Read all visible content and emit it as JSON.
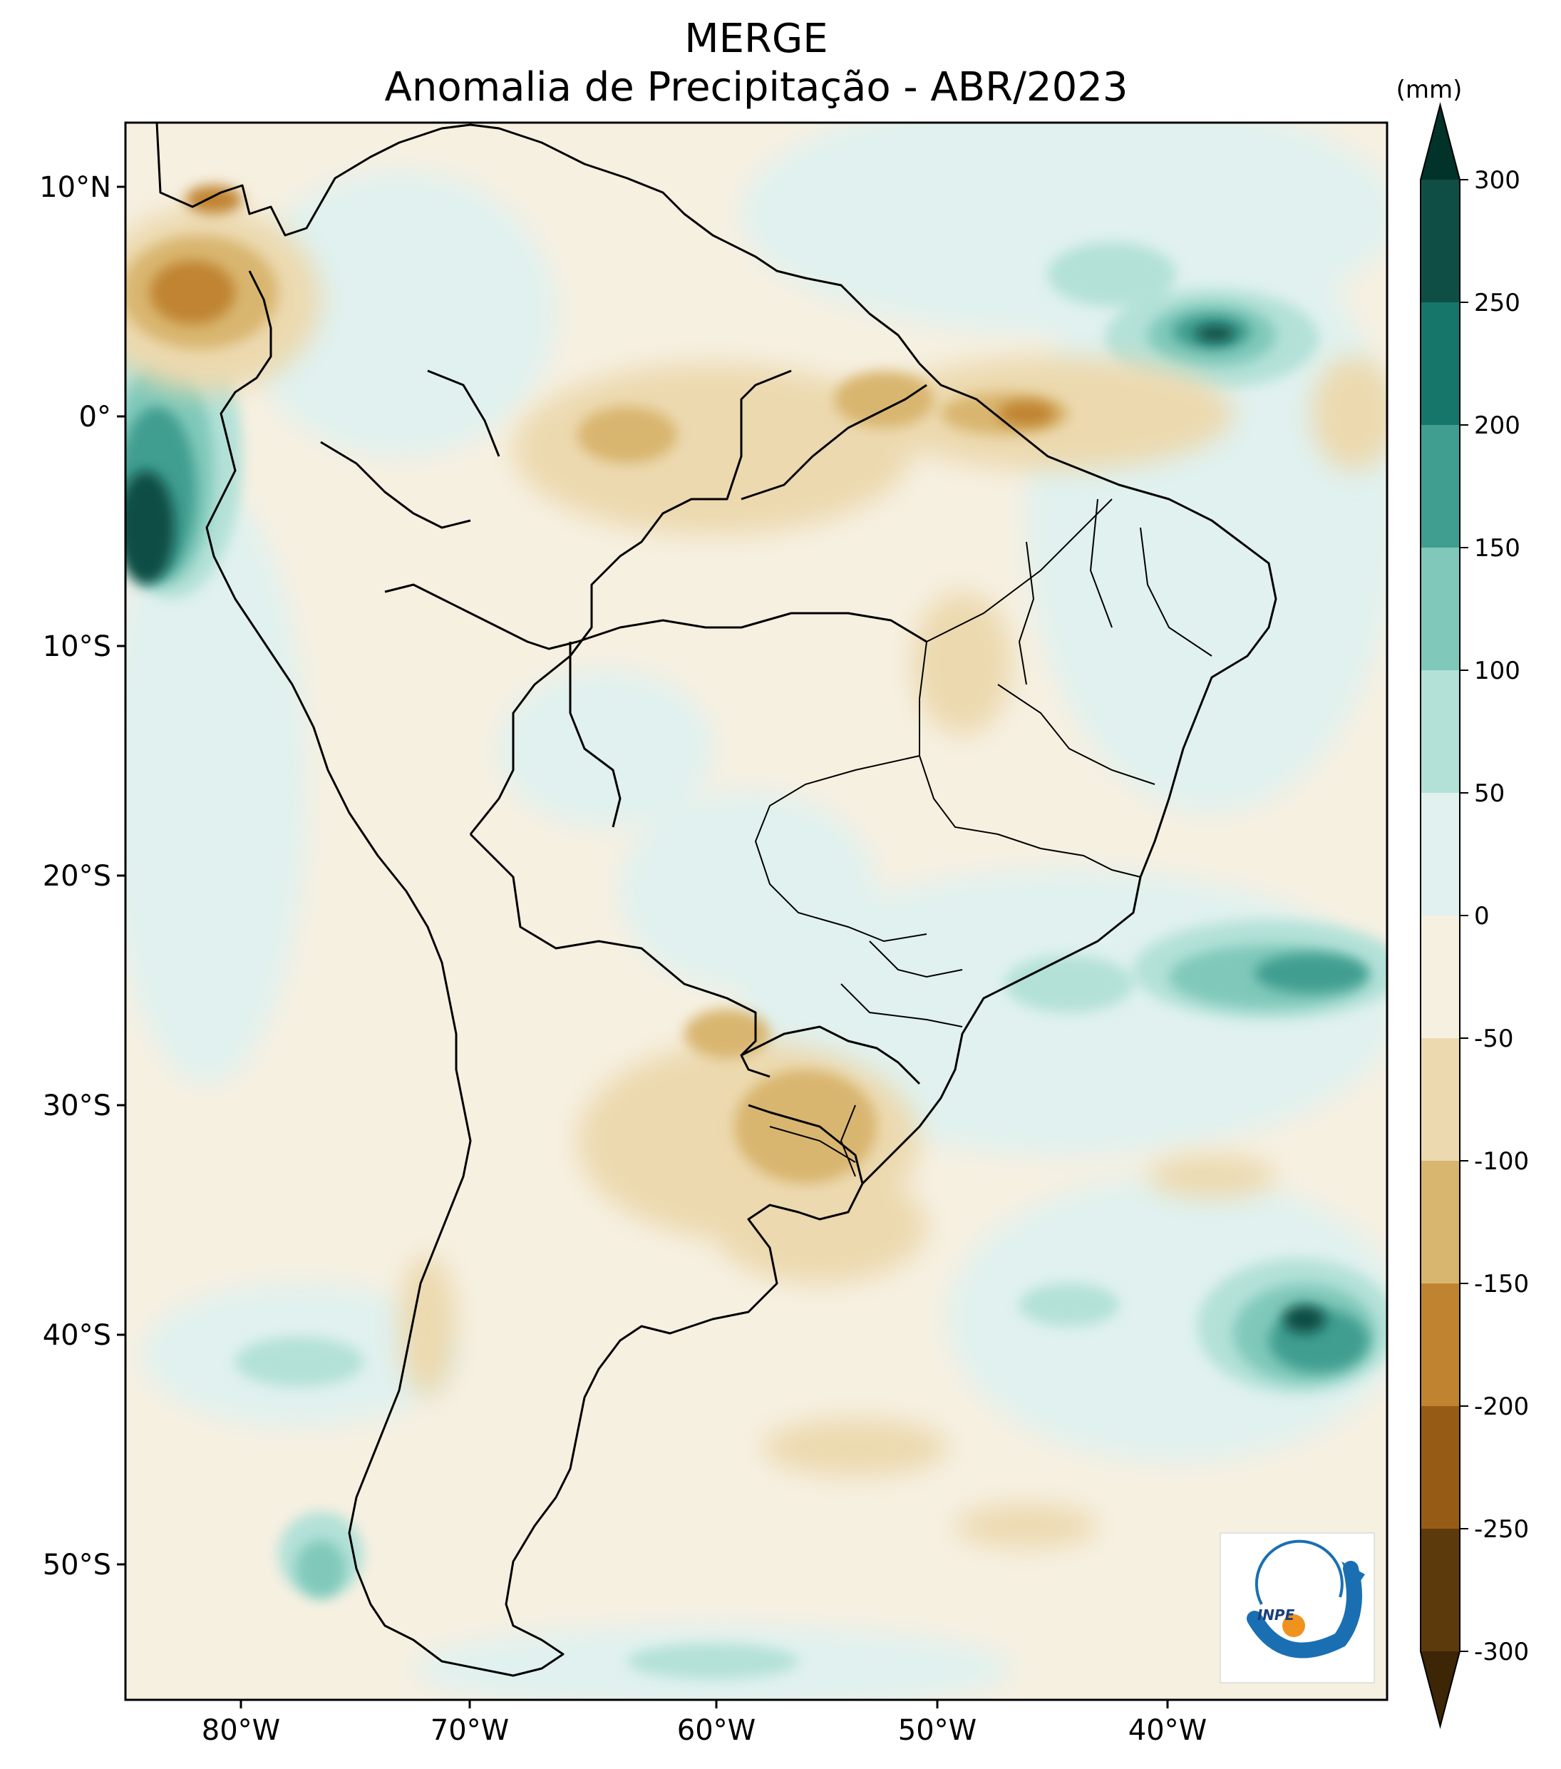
{
  "title": "MERGE",
  "subtitle": "Anomalia de Precipitação - ABR/2023",
  "colorbar": {
    "unit": "(mm)",
    "ticks": [
      "300",
      "250",
      "200",
      "150",
      "100",
      "50",
      "0",
      "-50",
      "-100",
      "-150",
      "-200",
      "-250",
      "-300"
    ],
    "colors": [
      "#01332a",
      "#0f4e45",
      "#16766a",
      "#3f9e90",
      "#80c9ba",
      "#b3e1d8",
      "#e0f1ef",
      "#f6f0e1",
      "#ecd9af",
      "#d9b66f",
      "#c08430",
      "#965c16",
      "#5d3a0b",
      "#3c2605"
    ]
  },
  "axes": {
    "lon_ticks": [
      "80°W",
      "70°W",
      "60°W",
      "50°W",
      "40°W"
    ],
    "lat_ticks": [
      "10°N",
      "0°",
      "10°S",
      "20°S",
      "30°S",
      "40°S",
      "50°S"
    ]
  },
  "logo": {
    "text": "INPE"
  }
}
